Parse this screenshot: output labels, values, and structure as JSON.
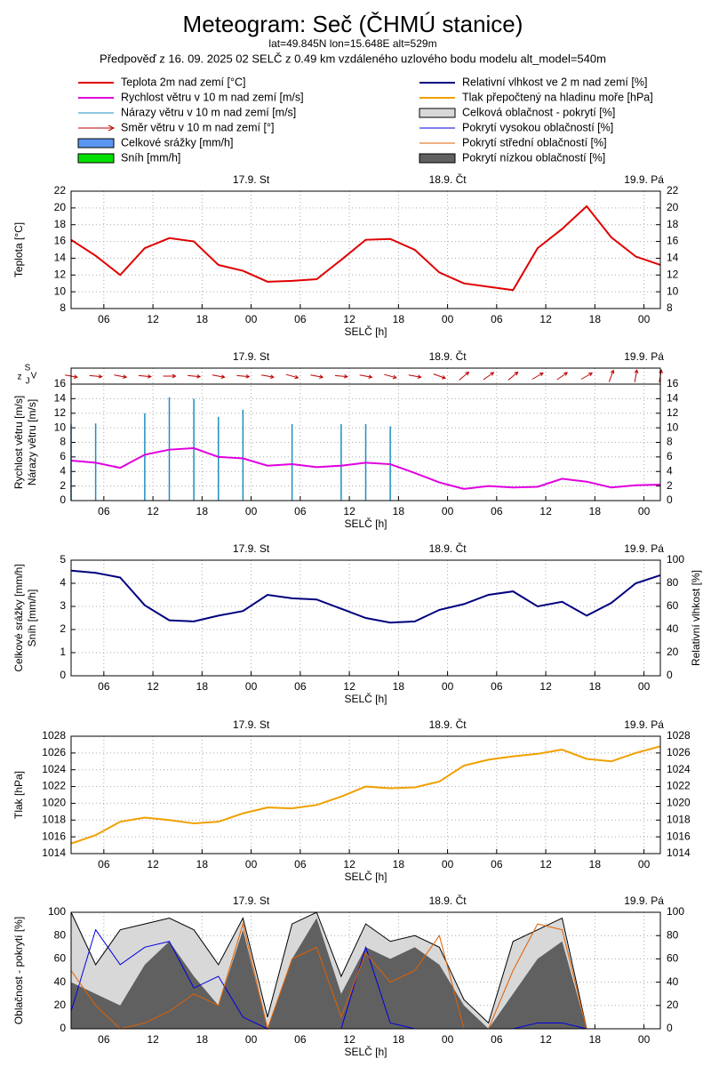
{
  "header": {
    "title": "Meteogram: Seč (ČHMÚ stanice)",
    "location": "lat=49.845N lon=15.648E alt=529m",
    "forecast": "Předpověď z 16. 09. 2025 02 SELČ z 0.49 km vzdáleného uzlového bodu modelu alt_model=540m"
  },
  "legend": [
    {
      "label": "Teplota 2m nad zemí [°C]",
      "color": "#e00000",
      "kind": "line"
    },
    {
      "label": "Relativní vlhkost ve 2 m nad zemí [%]",
      "color": "#00007f",
      "kind": "line"
    },
    {
      "label": "Rychlost větru v 10 m nad zemí [m/s]",
      "color": "#e000e0",
      "kind": "line"
    },
    {
      "label": "Tlak přepočtený na hladinu moře [hPa]",
      "color": "#f0a000",
      "kind": "line"
    },
    {
      "label": "Nárazy větru v 10 m nad zemí [m/s]",
      "color": "#1f8fbf",
      "kind": "thin"
    },
    {
      "label": "Celková oblačnost - pokrytí [%]",
      "color": "#d8d8d8",
      "kind": "box"
    },
    {
      "label": "Směr větru v 10 m nad zemí [°]",
      "color": "#c00000",
      "kind": "arrow"
    },
    {
      "label": "Pokrytí vysokou oblačností [%]",
      "color": "#0000e0",
      "kind": "thin"
    },
    {
      "label": "Celkové srážky [mm/h]",
      "color": "#5a96f0",
      "kind": "box"
    },
    {
      "label": "Pokrytí střední oblačností [%]",
      "color": "#e06000",
      "kind": "thin"
    },
    {
      "label": "Sníh [mm/h]",
      "color": "#00e000",
      "kind": "box"
    },
    {
      "label": "Pokrytí nízkou oblačností [%]",
      "color": "#606060",
      "kind": "box"
    }
  ],
  "chart_data": [
    {
      "type": "line",
      "xlabel": "SELČ [h]",
      "ylabel": [
        "Teplota [°C]"
      ],
      "x": [
        2,
        5,
        8,
        11,
        14,
        17,
        20,
        23,
        26,
        29,
        32,
        35,
        38,
        41,
        44,
        47,
        50,
        53,
        56,
        59,
        62,
        65,
        68,
        71,
        74
      ],
      "xlim": [
        2,
        74
      ],
      "xticks": [
        {
          "value": 6,
          "label": "06"
        },
        {
          "value": 12,
          "label": "12"
        },
        {
          "value": 18,
          "label": "18"
        },
        {
          "value": 24,
          "label": "00"
        },
        {
          "value": 30,
          "label": "06"
        },
        {
          "value": 36,
          "label": "12"
        },
        {
          "value": 42,
          "label": "18"
        },
        {
          "value": 48,
          "label": "00"
        },
        {
          "value": 54,
          "label": "06"
        },
        {
          "value": 60,
          "label": "12"
        },
        {
          "value": 66,
          "label": "18"
        },
        {
          "value": 72,
          "label": "00"
        }
      ],
      "day_labels": [
        {
          "value": 24,
          "label": "17.9. St"
        },
        {
          "value": 48,
          "label": "18.9. Čt"
        },
        {
          "value": 72,
          "label": "19.9. Pá"
        }
      ],
      "ylim": [
        8,
        22
      ],
      "yticks": [
        8,
        10,
        12,
        14,
        16,
        18,
        20,
        22
      ],
      "grid": true,
      "series": [
        {
          "name": "Teplota 2m nad zemí [°C]",
          "color": "#e00000",
          "kind": "line",
          "values": [
            16.2,
            14.3,
            12.0,
            15.2,
            16.4,
            16.0,
            13.2,
            12.5,
            11.2,
            11.3,
            11.5,
            13.8,
            16.2,
            16.3,
            15.0,
            12.3,
            11.0,
            10.6,
            10.2,
            15.2,
            17.5,
            20.2,
            16.5,
            14.2,
            13.2
          ]
        }
      ]
    },
    {
      "type": "line",
      "xlabel": "SELČ [h]",
      "ylabel": [
        "Rychlost větru [m/s]",
        "Nárazy větru [m/s]"
      ],
      "compass": [
        "z",
        "S",
        "J",
        "V"
      ],
      "x": [
        2,
        5,
        8,
        11,
        14,
        17,
        20,
        23,
        26,
        29,
        32,
        35,
        38,
        41,
        44,
        47,
        50,
        53,
        56,
        59,
        62,
        65,
        68,
        71,
        74
      ],
      "xlim": [
        2,
        74
      ],
      "xticks": [
        {
          "value": 6,
          "label": "06"
        },
        {
          "value": 12,
          "label": "12"
        },
        {
          "value": 18,
          "label": "18"
        },
        {
          "value": 24,
          "label": "00"
        },
        {
          "value": 30,
          "label": "06"
        },
        {
          "value": 36,
          "label": "12"
        },
        {
          "value": 42,
          "label": "18"
        },
        {
          "value": 48,
          "label": "00"
        },
        {
          "value": 54,
          "label": "06"
        },
        {
          "value": 60,
          "label": "12"
        },
        {
          "value": 66,
          "label": "18"
        },
        {
          "value": 72,
          "label": "00"
        }
      ],
      "day_labels": [
        {
          "value": 24,
          "label": "17.9. St"
        },
        {
          "value": 48,
          "label": "18.9. Čt"
        },
        {
          "value": 72,
          "label": "19.9. Pá"
        }
      ],
      "ylim": [
        0,
        16
      ],
      "yticks": [
        0,
        2,
        4,
        6,
        8,
        10,
        12,
        14,
        16
      ],
      "grid": true,
      "series": [
        {
          "name": "Nárazy větru v 10 m nad zemí [m/s]",
          "color": "#1f8fbf",
          "kind": "spike",
          "values": [
            10.5,
            10.6,
            null,
            12.0,
            14.2,
            14.0,
            11.5,
            12.5,
            null,
            10.5,
            null,
            10.5,
            10.5,
            10.2,
            null,
            null,
            null,
            null,
            null,
            null,
            null,
            null,
            null,
            null,
            null
          ]
        },
        {
          "name": "Rychlost větru v 10 m nad zemí [m/s]",
          "color": "#e000e0",
          "kind": "line",
          "values": [
            5.5,
            5.2,
            4.5,
            6.3,
            7.0,
            7.2,
            6.0,
            5.8,
            4.8,
            5.0,
            4.6,
            4.8,
            5.2,
            5.0,
            3.8,
            2.5,
            1.6,
            2.0,
            1.8,
            1.9,
            3.0,
            2.6,
            1.8,
            2.1,
            2.2
          ]
        },
        {
          "name": "Směr větru v 10 m nad zemí [°]",
          "color": "#c00000",
          "kind": "arrow",
          "values": [
            280,
            275,
            280,
            275,
            270,
            275,
            280,
            275,
            280,
            285,
            280,
            275,
            280,
            285,
            280,
            290,
            230,
            235,
            230,
            240,
            235,
            240,
            200,
            190,
            190
          ]
        }
      ]
    },
    {
      "type": "line",
      "xlabel": "SELČ [h]",
      "ylabel": [
        "Celkové srážky [mm/h]",
        "Sníh [mm/h]"
      ],
      "y2label": "Relativní vlhkost [%]",
      "x": [
        2,
        5,
        8,
        11,
        14,
        17,
        20,
        23,
        26,
        29,
        32,
        35,
        38,
        41,
        44,
        47,
        50,
        53,
        56,
        59,
        62,
        65,
        68,
        71,
        74
      ],
      "xlim": [
        2,
        74
      ],
      "xticks": [
        {
          "value": 6,
          "label": "06"
        },
        {
          "value": 12,
          "label": "12"
        },
        {
          "value": 18,
          "label": "18"
        },
        {
          "value": 24,
          "label": "00"
        },
        {
          "value": 30,
          "label": "06"
        },
        {
          "value": 36,
          "label": "12"
        },
        {
          "value": 42,
          "label": "18"
        },
        {
          "value": 48,
          "label": "00"
        },
        {
          "value": 54,
          "label": "06"
        },
        {
          "value": 60,
          "label": "12"
        },
        {
          "value": 66,
          "label": "18"
        },
        {
          "value": 72,
          "label": "00"
        }
      ],
      "day_labels": [
        {
          "value": 24,
          "label": "17.9. St"
        },
        {
          "value": 48,
          "label": "18.9. Čt"
        },
        {
          "value": 72,
          "label": "19.9. Pá"
        }
      ],
      "ylim": [
        0,
        5
      ],
      "yticks": [
        0,
        1,
        2,
        3,
        4,
        5
      ],
      "y2lim": [
        0,
        100
      ],
      "y2ticks": [
        0,
        20,
        40,
        60,
        80,
        100
      ],
      "grid": true,
      "series": [
        {
          "name": "Relativní vlhkost ve 2 m nad zemí [%]",
          "color": "#00007f",
          "kind": "line",
          "axis": "y2",
          "values": [
            91,
            89,
            85,
            61,
            48,
            47,
            52,
            56,
            70,
            67,
            66,
            58,
            50,
            46,
            47,
            57,
            62,
            70,
            73,
            60,
            64,
            52,
            63,
            80,
            87
          ]
        }
      ]
    },
    {
      "type": "line",
      "xlabel": "SELČ [h]",
      "ylabel": [
        "Tlak [hPa]"
      ],
      "x": [
        2,
        5,
        8,
        11,
        14,
        17,
        20,
        23,
        26,
        29,
        32,
        35,
        38,
        41,
        44,
        47,
        50,
        53,
        56,
        59,
        62,
        65,
        68,
        71,
        74
      ],
      "xlim": [
        2,
        74
      ],
      "xticks": [
        {
          "value": 6,
          "label": "06"
        },
        {
          "value": 12,
          "label": "12"
        },
        {
          "value": 18,
          "label": "18"
        },
        {
          "value": 24,
          "label": "00"
        },
        {
          "value": 30,
          "label": "06"
        },
        {
          "value": 36,
          "label": "12"
        },
        {
          "value": 42,
          "label": "18"
        },
        {
          "value": 48,
          "label": "00"
        },
        {
          "value": 54,
          "label": "06"
        },
        {
          "value": 60,
          "label": "12"
        },
        {
          "value": 66,
          "label": "18"
        },
        {
          "value": 72,
          "label": "00"
        }
      ],
      "day_labels": [
        {
          "value": 24,
          "label": "17.9. St"
        },
        {
          "value": 48,
          "label": "18.9. Čt"
        },
        {
          "value": 72,
          "label": "19.9. Pá"
        }
      ],
      "ylim": [
        1014,
        1028
      ],
      "yticks": [
        1014,
        1016,
        1018,
        1020,
        1022,
        1024,
        1026,
        1028
      ],
      "grid": true,
      "series": [
        {
          "name": "Tlak přepočtený na hladinu moře [hPa]",
          "color": "#f0a000",
          "kind": "line",
          "values": [
            1015.2,
            1016.2,
            1017.8,
            1018.3,
            1018.0,
            1017.6,
            1017.8,
            1018.8,
            1019.5,
            1019.4,
            1019.8,
            1020.8,
            1022.0,
            1021.8,
            1021.9,
            1022.6,
            1024.5,
            1025.2,
            1025.6,
            1025.9,
            1026.4,
            1025.3,
            1025.0,
            1026.0,
            1026.8
          ]
        }
      ]
    },
    {
      "type": "line",
      "xlabel": "SELČ [h]",
      "ylabel": [
        "Oblačnost - pokrytí [%]"
      ],
      "x": [
        2,
        5,
        8,
        11,
        14,
        17,
        20,
        23,
        26,
        29,
        32,
        35,
        38,
        41,
        44,
        47,
        50,
        53,
        56,
        59,
        62,
        65,
        68,
        71,
        74
      ],
      "xlim": [
        2,
        74
      ],
      "xticks": [
        {
          "value": 6,
          "label": "06"
        },
        {
          "value": 12,
          "label": "12"
        },
        {
          "value": 18,
          "label": "18"
        },
        {
          "value": 24,
          "label": "00"
        },
        {
          "value": 30,
          "label": "06"
        },
        {
          "value": 36,
          "label": "12"
        },
        {
          "value": 42,
          "label": "18"
        },
        {
          "value": 48,
          "label": "00"
        },
        {
          "value": 54,
          "label": "06"
        },
        {
          "value": 60,
          "label": "12"
        },
        {
          "value": 66,
          "label": "18"
        },
        {
          "value": 72,
          "label": "00"
        }
      ],
      "day_labels": [
        {
          "value": 24,
          "label": "17.9. St"
        },
        {
          "value": 48,
          "label": "18.9. Čt"
        },
        {
          "value": 72,
          "label": "19.9. Pá"
        }
      ],
      "ylim": [
        0,
        100
      ],
      "yticks": [
        0,
        20,
        40,
        60,
        80,
        100
      ],
      "grid": true,
      "series": [
        {
          "name": "Celková oblačnost - pokrytí [%]",
          "color": "#d8d8d8",
          "kind": "area",
          "values": [
            100,
            55,
            85,
            90,
            95,
            85,
            55,
            95,
            10,
            90,
            100,
            45,
            90,
            75,
            80,
            70,
            25,
            5,
            75,
            85,
            95,
            0,
            null,
            null,
            null
          ]
        },
        {
          "name": "Pokrytí nízkou oblačností [%]",
          "color": "#606060",
          "kind": "area",
          "values": [
            40,
            30,
            20,
            55,
            75,
            45,
            20,
            85,
            0,
            60,
            95,
            30,
            70,
            60,
            70,
            55,
            20,
            0,
            30,
            60,
            75,
            0,
            null,
            null,
            null
          ]
        },
        {
          "name": "Pokrytí vysokou oblačností [%]",
          "color": "#0000e0",
          "kind": "line",
          "values": [
            15,
            85,
            55,
            70,
            75,
            35,
            45,
            10,
            0,
            0,
            0,
            0,
            70,
            5,
            0,
            0,
            0,
            0,
            0,
            5,
            5,
            0,
            null,
            null,
            null
          ]
        },
        {
          "name": "Pokrytí střední oblačností [%]",
          "color": "#e06000",
          "kind": "line",
          "values": [
            50,
            20,
            0,
            5,
            15,
            30,
            20,
            90,
            0,
            60,
            70,
            10,
            65,
            40,
            50,
            80,
            0,
            0,
            50,
            90,
            85,
            0,
            null,
            null,
            null
          ]
        }
      ]
    }
  ]
}
